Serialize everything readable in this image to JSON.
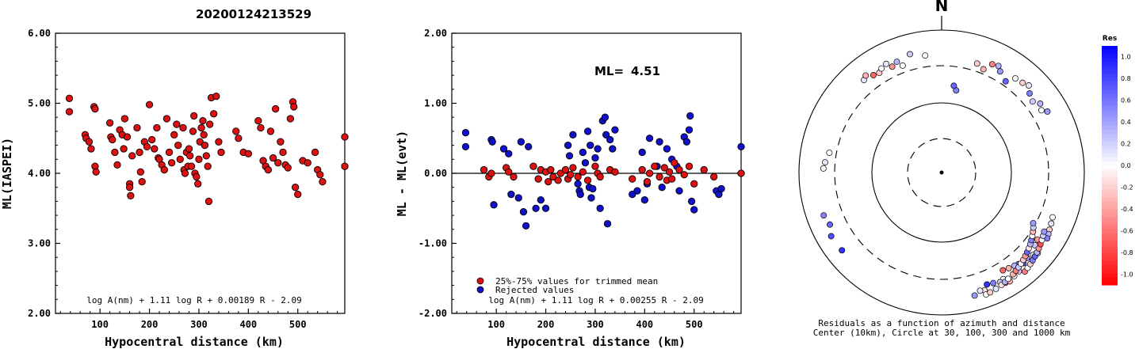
{
  "event_id": "20200124213529",
  "colors": {
    "trimmed": "#dd1111",
    "rejected": "#1111cc"
  },
  "chart_data": [
    {
      "type": "scatter",
      "ylabel": "ML(IASPEI)",
      "xlabel": "Hypocentral distance (km)",
      "xlim": [
        10,
        595
      ],
      "ylim": [
        2.0,
        6.0
      ],
      "xticks": [
        "100",
        "200",
        "300",
        "400",
        "500"
      ],
      "yticks": [
        "2.00",
        "3.00",
        "4.00",
        "5.00",
        "6.00"
      ],
      "formula": "log A(nm) + 1.11 log R + 0.00189 R - 2.09",
      "grid": false,
      "x": [
        38,
        38,
        70,
        72,
        78,
        82,
        88,
        90,
        90,
        92,
        120,
        122,
        125,
        130,
        135,
        140,
        145,
        148,
        150,
        155,
        160,
        160,
        162,
        165,
        175,
        180,
        182,
        185,
        190,
        195,
        200,
        205,
        210,
        215,
        218,
        220,
        225,
        230,
        235,
        240,
        245,
        250,
        255,
        258,
        262,
        268,
        270,
        272,
        275,
        278,
        280,
        282,
        285,
        288,
        290,
        292,
        295,
        298,
        300,
        302,
        305,
        308,
        310,
        312,
        315,
        318,
        320,
        322,
        325,
        330,
        335,
        340,
        345,
        375,
        380,
        390,
        400,
        420,
        425,
        430,
        435,
        440,
        445,
        450,
        455,
        460,
        465,
        470,
        475,
        480,
        485,
        490,
        492,
        495,
        500,
        510,
        520,
        535,
        540,
        545,
        550,
        595,
        595
      ],
      "y": [
        5.07,
        4.88,
        4.55,
        4.5,
        4.45,
        4.35,
        4.95,
        4.92,
        4.1,
        4.02,
        4.72,
        4.52,
        4.48,
        4.3,
        4.12,
        4.62,
        4.55,
        4.35,
        4.78,
        4.52,
        3.85,
        3.8,
        3.68,
        4.25,
        4.65,
        4.3,
        4.02,
        3.88,
        4.45,
        4.38,
        4.98,
        4.48,
        4.35,
        4.65,
        4.22,
        4.2,
        4.12,
        4.05,
        4.78,
        4.3,
        4.15,
        4.55,
        4.7,
        4.4,
        4.2,
        4.65,
        4.05,
        4.0,
        4.3,
        4.1,
        4.35,
        4.25,
        4.1,
        4.6,
        4.82,
        4.0,
        3.95,
        3.85,
        4.2,
        4.45,
        4.65,
        4.75,
        4.55,
        4.4,
        4.25,
        4.1,
        3.6,
        4.7,
        5.08,
        4.85,
        5.1,
        4.45,
        4.3,
        4.6,
        4.5,
        4.3,
        4.28,
        4.75,
        4.65,
        4.18,
        4.1,
        4.05,
        4.6,
        4.22,
        4.92,
        4.15,
        4.45,
        4.3,
        4.12,
        4.08,
        4.78,
        5.02,
        4.95,
        3.8,
        3.7,
        4.18,
        4.15,
        4.3,
        4.05,
        3.98,
        3.88,
        4.52,
        4.1
      ]
    },
    {
      "type": "scatter",
      "ylabel": "ML - ML(evt)",
      "xlabel": "Hypocentral distance (km)",
      "xlim": [
        10,
        595
      ],
      "ylim": [
        -2.0,
        2.0
      ],
      "xticks": [
        "100",
        "200",
        "300",
        "400",
        "500"
      ],
      "yticks": [
        "-2.00",
        "-1.00",
        "0.00",
        "1.00",
        "2.00"
      ],
      "ml_label": "ML=",
      "ml_value": "4.51",
      "reference_line": 0.0,
      "formula": "log A(nm) + 1.11 log R + 0.00255 R - 2.09",
      "legend": [
        "25%-75% values for trimmed mean",
        "Rejected values"
      ],
      "series": [
        {
          "name": "25%-75% values for trimmed mean",
          "x": [
            75,
            85,
            90,
            120,
            125,
            135,
            175,
            185,
            190,
            200,
            205,
            210,
            215,
            225,
            230,
            240,
            245,
            250,
            255,
            265,
            275,
            285,
            300,
            305,
            310,
            330,
            340,
            375,
            395,
            405,
            410,
            420,
            430,
            440,
            445,
            450,
            455,
            460,
            470,
            480,
            490,
            500,
            520,
            540,
            595
          ],
          "y": [
            0.05,
            -0.05,
            0.0,
            0.08,
            0.02,
            -0.05,
            0.1,
            -0.08,
            0.05,
            0.02,
            -0.12,
            0.05,
            -0.05,
            -0.1,
            0.0,
            0.05,
            -0.08,
            -0.02,
            0.08,
            -0.05,
            0.02,
            -0.1,
            0.1,
            0.0,
            -0.05,
            0.05,
            0.02,
            -0.08,
            0.05,
            -0.12,
            0.0,
            0.1,
            -0.05,
            0.08,
            -0.1,
            0.02,
            -0.08,
            0.15,
            0.05,
            -0.02,
            0.1,
            -0.15,
            0.05,
            -0.05,
            0.0
          ]
        },
        {
          "name": "Rejected values",
          "x": [
            38,
            38,
            90,
            92,
            95,
            115,
            125,
            130,
            145,
            150,
            155,
            160,
            165,
            180,
            190,
            200,
            245,
            248,
            255,
            265,
            268,
            270,
            275,
            280,
            285,
            288,
            290,
            292,
            295,
            300,
            305,
            310,
            315,
            320,
            322,
            325,
            330,
            335,
            340,
            375,
            385,
            395,
            400,
            405,
            410,
            425,
            430,
            435,
            445,
            455,
            465,
            470,
            480,
            485,
            490,
            492,
            495,
            500,
            545,
            550,
            555,
            595
          ],
          "y": [
            0.58,
            0.38,
            0.48,
            0.45,
            -0.45,
            0.35,
            0.28,
            -0.3,
            -0.35,
            0.45,
            -0.55,
            -0.75,
            0.38,
            -0.5,
            -0.38,
            -0.5,
            0.4,
            0.25,
            0.55,
            -0.15,
            -0.25,
            -0.3,
            0.3,
            0.15,
            0.6,
            -0.2,
            0.4,
            -0.35,
            -0.22,
            0.22,
            0.35,
            -0.5,
            0.75,
            0.8,
            0.55,
            -0.72,
            0.48,
            0.35,
            0.62,
            -0.3,
            -0.25,
            0.3,
            -0.38,
            -0.15,
            0.5,
            0.1,
            0.45,
            -0.2,
            0.35,
            0.2,
            0.1,
            -0.25,
            0.52,
            0.45,
            0.62,
            0.82,
            -0.4,
            -0.52,
            -0.25,
            -0.3,
            -0.22,
            0.38
          ]
        }
      ]
    },
    {
      "type": "scatter",
      "title": "N",
      "caption1": "Residuals as a function of azimuth and distance",
      "caption2": "Center (10km), Circle at 30, 100, 300 and 1000 km",
      "colorbar_title": "Res",
      "colorbar_ticks": [
        "1.0",
        "0.8",
        "0.6",
        "0.4",
        "0.2",
        "0.0",
        "-0.2",
        "-0.4",
        "-0.6",
        "-0.8",
        "-1.0"
      ],
      "coordinates": "azimuth_deg, distance_km, residual",
      "azimuth": [
        320,
        322,
        325,
        328,
        330,
        333,
        335,
        338,
        340,
        345,
        352,
        18,
        22,
        25,
        28,
        30,
        35,
        38,
        42,
        45,
        48,
        52,
        55,
        58,
        60,
        280,
        275,
        272,
        250,
        245,
        240,
        232,
        112,
        115,
        118,
        120,
        122,
        125,
        128,
        130,
        132,
        135,
        138,
        140,
        142,
        145,
        148,
        150,
        152,
        155,
        158,
        160,
        162,
        165,
        150,
        148,
        145,
        142,
        140,
        138,
        136,
        134,
        132,
        130,
        128,
        126,
        124,
        122,
        120,
        160,
        158,
        155,
        152,
        150,
        148,
        145,
        143,
        141,
        139,
        137,
        135,
        133,
        131,
        129,
        127,
        125,
        123,
        121,
        119,
        10,
        8
      ],
      "distance_km": [
        480,
        520,
        450,
        430,
        470,
        500,
        420,
        460,
        380,
        510,
        440,
        390,
        350,
        460,
        480,
        420,
        350,
        460,
        480,
        520,
        440,
        400,
        470,
        430,
        500,
        380,
        420,
        440,
        560,
        520,
        600,
        580,
        460,
        480,
        500,
        520,
        540,
        420,
        440,
        560,
        520,
        480,
        500,
        460,
        440,
        420,
        400,
        520,
        540,
        500,
        480,
        560,
        540,
        600,
        600,
        620,
        580,
        560,
        640,
        620,
        600,
        580,
        560,
        540,
        520,
        500,
        480,
        460,
        440,
        650,
        640,
        620,
        600,
        580,
        560,
        540,
        520,
        500,
        480,
        460,
        440,
        420,
        400,
        380,
        360,
        340,
        320,
        300,
        280,
        150,
        170
      ],
      "residual": [
        0.1,
        -0.3,
        -0.6,
        -0.2,
        0.0,
        0.1,
        -0.4,
        0.3,
        0.0,
        0.2,
        0.0,
        -0.2,
        -0.3,
        -0.5,
        0.3,
        0.4,
        0.6,
        0.0,
        -0.2,
        0.1,
        0.5,
        0.2,
        0.3,
        0.0,
        0.4,
        0.0,
        0.1,
        0.0,
        0.5,
        0.6,
        0.7,
        0.8,
        0.0,
        0.1,
        -0.2,
        0.3,
        0.5,
        -0.4,
        0.2,
        0.0,
        -0.1,
        0.4,
        0.7,
        0.6,
        0.3,
        -0.3,
        -0.6,
        0.0,
        0.2,
        0.5,
        0.8,
        -0.1,
        0.1,
        0.4,
        -0.6,
        -0.3,
        0.0,
        0.2,
        -0.5,
        0.0,
        -0.2,
        0.5,
        0.6,
        0.3,
        -0.4,
        -0.7,
        0.0,
        0.2,
        0.4,
        0.0,
        -0.2,
        0.1,
        -0.1,
        0.3,
        0.0,
        -0.3,
        -0.5,
        0.2,
        0.0,
        -0.2,
        -0.4,
        0.6,
        -0.1,
        0.3,
        0.5,
        0.0,
        -0.3,
        0.2,
        0.4,
        0.5,
        0.6
      ]
    }
  ]
}
